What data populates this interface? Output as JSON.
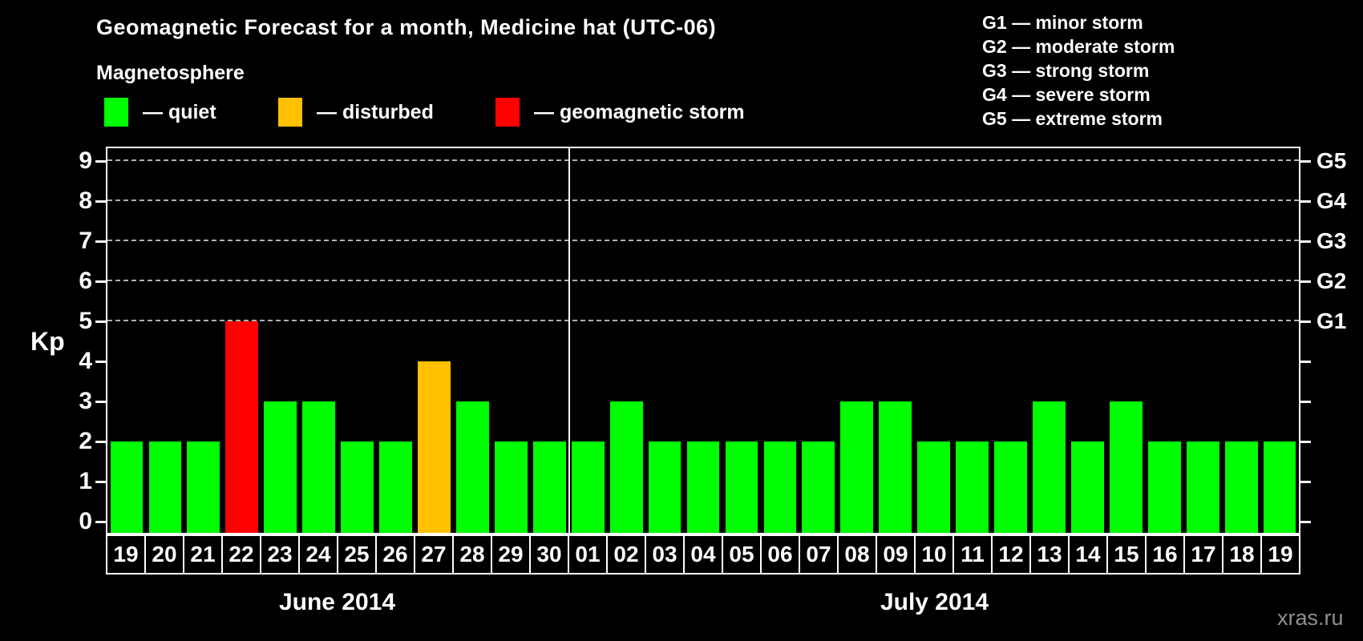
{
  "title": "Geomagnetic Forecast for a month, Medicine hat (UTC-06)",
  "subtitle": "Magnetosphere",
  "legend": {
    "items": [
      {
        "status": "quiet",
        "label": "— quiet"
      },
      {
        "status": "disturbed",
        "label": "— disturbed"
      },
      {
        "status": "storm",
        "label": "— geomagnetic storm"
      }
    ]
  },
  "g_legend": [
    "G1 — minor storm",
    "G2 — moderate storm",
    "G3 — strong storm",
    "G4 — severe storm",
    "G5 — extreme storm"
  ],
  "watermark": "xras.ru",
  "colors": {
    "quiet": "#00ff00",
    "disturbed": "#ffc000",
    "storm": "#ff0000",
    "background": "#000000",
    "grid": "#b0b0b0",
    "axis": "#ffffff",
    "watermark": "#8f8f8f"
  },
  "chart_data": {
    "type": "bar",
    "title": "Geomagnetic Forecast for a month, Medicine hat (UTC-06)",
    "ylabel": "Kp",
    "ylim": [
      0,
      9
    ],
    "yticks": [
      0,
      1,
      2,
      3,
      4,
      5,
      6,
      7,
      8,
      9
    ],
    "right_axis": [
      {
        "kp": 5,
        "label": "G1"
      },
      {
        "kp": 6,
        "label": "G2"
      },
      {
        "kp": 7,
        "label": "G3"
      },
      {
        "kp": 8,
        "label": "G4"
      },
      {
        "kp": 9,
        "label": "G5"
      }
    ],
    "gridlines_at": [
      5,
      6,
      7,
      8,
      9
    ],
    "grid": "dashed horizontal lines at G storm levels only",
    "legend_position": "top-left",
    "months": [
      {
        "label": "June 2014",
        "days": 12
      },
      {
        "label": "July 2014",
        "days": 19
      }
    ],
    "categories": [
      "19",
      "20",
      "21",
      "22",
      "23",
      "24",
      "25",
      "26",
      "27",
      "28",
      "29",
      "30",
      "01",
      "02",
      "03",
      "04",
      "05",
      "06",
      "07",
      "08",
      "09",
      "10",
      "11",
      "12",
      "13",
      "14",
      "15",
      "16",
      "17",
      "18",
      "19"
    ],
    "values": [
      2,
      2,
      2,
      5,
      3,
      3,
      2,
      2,
      4,
      3,
      2,
      2,
      2,
      3,
      2,
      2,
      2,
      2,
      2,
      3,
      3,
      2,
      2,
      2,
      3,
      2,
      3,
      2,
      2,
      2,
      2
    ],
    "statuses": [
      "quiet",
      "quiet",
      "quiet",
      "storm",
      "quiet",
      "quiet",
      "quiet",
      "quiet",
      "disturbed",
      "quiet",
      "quiet",
      "quiet",
      "quiet",
      "quiet",
      "quiet",
      "quiet",
      "quiet",
      "quiet",
      "quiet",
      "quiet",
      "quiet",
      "quiet",
      "quiet",
      "quiet",
      "quiet",
      "quiet",
      "quiet",
      "quiet",
      "quiet",
      "quiet",
      "quiet"
    ]
  }
}
